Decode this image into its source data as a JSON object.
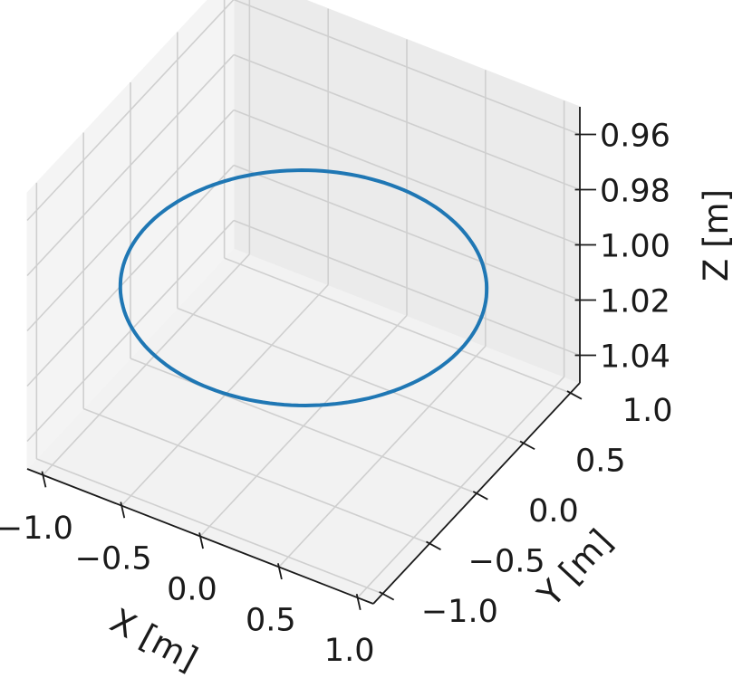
{
  "chart_data": {
    "type": "line",
    "projection": "3d",
    "title": "",
    "grid": true,
    "series": [
      {
        "color": "#1f77b4",
        "shape": "circle",
        "center": [
          0.0,
          0.0,
          1.0
        ],
        "radius": 1.0
      }
    ],
    "axes": {
      "x": {
        "label": "X [m]",
        "lim": [
          -1.1,
          1.1
        ],
        "ticks": [
          -1.0,
          -0.5,
          0.0,
          0.5,
          1.0
        ],
        "tick_labels": [
          "−1.0",
          "−0.5",
          "0.0",
          "0.5",
          "1.0"
        ]
      },
      "y": {
        "label": "Y [m]",
        "lim": [
          -1.1,
          1.1
        ],
        "ticks": [
          -1.0,
          -0.5,
          0.0,
          0.5,
          1.0
        ],
        "tick_labels": [
          "−1.0",
          "−0.5",
          "0.0",
          "0.5",
          "1.0"
        ]
      },
      "z": {
        "label": "Z [m]",
        "lim": [
          0.95,
          1.05
        ],
        "inverted": true,
        "ticks": [
          0.96,
          0.98,
          1.0,
          1.02,
          1.04
        ],
        "tick_labels": [
          "0.96",
          "0.98",
          "1.00",
          "1.02",
          "1.04"
        ]
      }
    },
    "colors": {
      "line": "#1f77b4",
      "pane": "#f2f2f2",
      "grid": "#cfcfcf",
      "axis": "#1a1a1a"
    }
  }
}
